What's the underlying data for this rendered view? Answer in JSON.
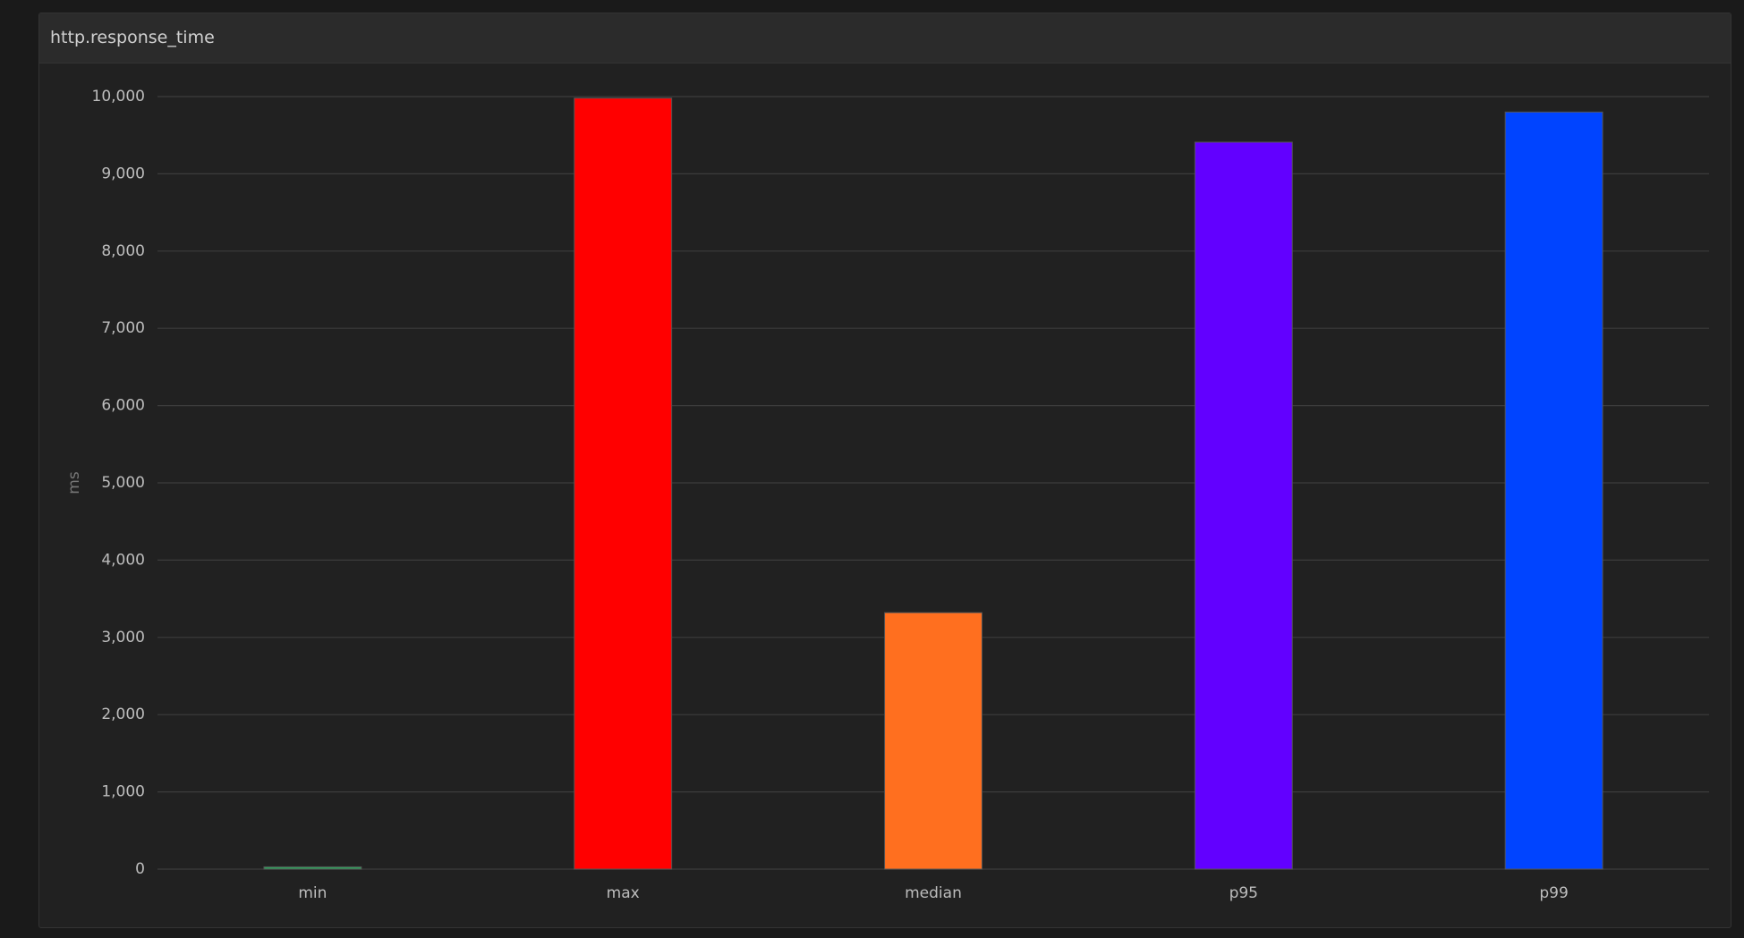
{
  "chart_data": {
    "type": "bar",
    "title": "http.response_time",
    "y_label": "ms",
    "categories": [
      "min",
      "max",
      "median",
      "p95",
      "p99"
    ],
    "values": [
      30,
      9980,
      3320,
      9410,
      9800
    ],
    "colors": [
      "#2e9e5b",
      "#ff0000",
      "#ff6f1f",
      "#6200ff",
      "#0044ff"
    ],
    "ylim": [
      0,
      10000
    ],
    "yticks": [
      0,
      {
        "value": 1000,
        "label": "1,000"
      },
      {
        "value": 2000,
        "label": "2,000"
      },
      {
        "value": 3000,
        "label": "3,000"
      },
      {
        "value": 4000,
        "label": "4,000"
      },
      {
        "value": 5000,
        "label": "5,000"
      },
      {
        "value": 6000,
        "label": "6,000"
      },
      {
        "value": 7000,
        "label": "7,000"
      },
      {
        "value": 8000,
        "label": "8,000"
      },
      {
        "value": 9000,
        "label": "9,000"
      },
      {
        "value": 10000,
        "label": "10,000"
      }
    ],
    "grid": true
  }
}
